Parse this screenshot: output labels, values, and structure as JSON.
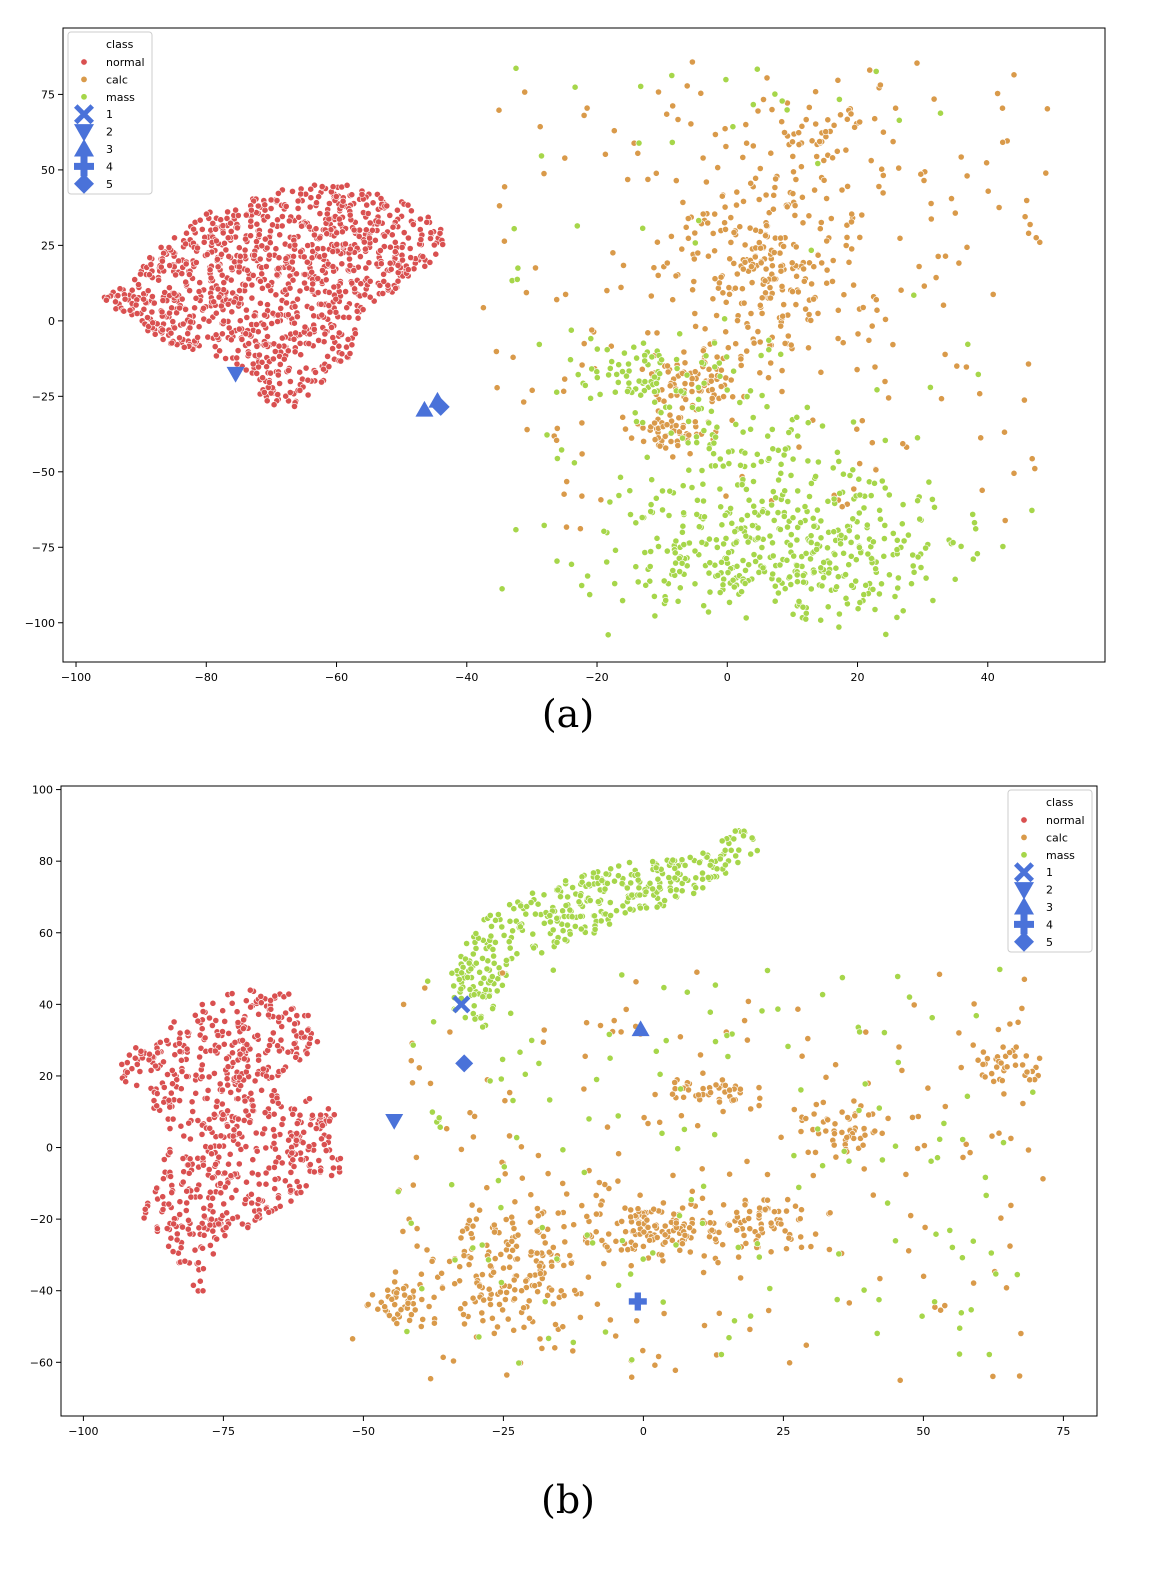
{
  "figure": {
    "panel_labels": [
      "(a)",
      "(b)"
    ],
    "legend_title": "class",
    "class_names": [
      "normal",
      "calc",
      "mass"
    ],
    "query_marker_names": [
      "1",
      "2",
      "3",
      "4",
      "5"
    ],
    "colors": {
      "normal": "#d95050",
      "calc": "#d99a4a",
      "mass": "#a6d64a",
      "query": "#4a72d9"
    },
    "icons": {
      "1": "x-marker-icon",
      "2": "triangle-down-icon",
      "3": "triangle-up-icon",
      "4": "plus-marker-icon",
      "5": "diamond-icon"
    }
  },
  "chart_data": [
    {
      "type": "scatter",
      "title": "",
      "xlabel": "",
      "ylabel": "",
      "xlim": [
        -102,
        58
      ],
      "ylim": [
        -113,
        97
      ],
      "xticks": [
        -100,
        -80,
        -60,
        -40,
        -20,
        0,
        20,
        40
      ],
      "yticks": [
        -100,
        -75,
        -50,
        -25,
        0,
        25,
        50,
        75
      ],
      "legend": {
        "title": "class",
        "location": "top-left",
        "entries": [
          "normal",
          "calc",
          "mass",
          "1",
          "2",
          "3",
          "4",
          "5"
        ]
      },
      "clusters": [
        {
          "class": "normal",
          "n": 1100,
          "mode": "poly",
          "poly": [
            [
              -96,
              8
            ],
            [
              -92,
              13
            ],
            [
              -87,
              25
            ],
            [
              -82,
              34
            ],
            [
              -75,
              40
            ],
            [
              -68,
              45
            ],
            [
              -58,
              46
            ],
            [
              -48,
              38
            ],
            [
              -44,
              32
            ],
            [
              -43,
              23
            ],
            [
              -48,
              15
            ],
            [
              -56,
              2
            ],
            [
              -58,
              -12
            ],
            [
              -63,
              -22
            ],
            [
              -67,
              -30
            ],
            [
              -71,
              -29
            ],
            [
              -73,
              -18
            ],
            [
              -78,
              -12
            ],
            [
              -88,
              -6
            ],
            [
              -93,
              2
            ]
          ]
        },
        {
          "class": "calc",
          "n": 250,
          "mode": "gauss",
          "cx": 6,
          "cy": 18,
          "sx": 8,
          "sy": 17
        },
        {
          "class": "calc",
          "n": 80,
          "mode": "gauss",
          "cx": -5,
          "cy": -18,
          "sx": 4,
          "sy": 6
        },
        {
          "class": "calc",
          "n": 50,
          "mode": "gauss",
          "cx": -8,
          "cy": -37,
          "sx": 3,
          "sy": 3
        },
        {
          "class": "calc",
          "n": 40,
          "mode": "gauss",
          "cx": 13,
          "cy": 63,
          "sx": 6,
          "sy": 6
        },
        {
          "class": "calc",
          "n": 200,
          "mode": "box",
          "x0": -38,
          "x1": 50,
          "y0": -70,
          "y1": 88
        },
        {
          "class": "mass",
          "n": 330,
          "mode": "gauss",
          "cx": 6,
          "cy": -77,
          "sx": 13,
          "sy": 10
        },
        {
          "class": "mass",
          "n": 110,
          "mode": "gauss",
          "cx": 2,
          "cy": -45,
          "sx": 8,
          "sy": 14
        },
        {
          "class": "mass",
          "n": 80,
          "mode": "gauss",
          "cx": -12,
          "cy": -18,
          "sx": 6,
          "sy": 6
        },
        {
          "class": "mass",
          "n": 60,
          "mode": "gauss",
          "cx": 20,
          "cy": -72,
          "sx": 6,
          "sy": 12
        },
        {
          "class": "mass",
          "n": 70,
          "mode": "box",
          "x0": -35,
          "x1": 40,
          "y0": -100,
          "y1": 85
        }
      ],
      "query_points": [
        {
          "label": "2",
          "marker": "triangle-down",
          "x": -75.5,
          "y": -17.5
        },
        {
          "label": "3",
          "marker": "triangle-up",
          "x": -46.5,
          "y": -29.5
        },
        {
          "label": "3",
          "marker": "triangle-up",
          "x": -44.5,
          "y": -26.5
        },
        {
          "label": "5",
          "marker": "diamond",
          "x": -44,
          "y": -28.5
        }
      ]
    },
    {
      "type": "scatter",
      "title": "",
      "xlabel": "",
      "ylabel": "",
      "xlim": [
        -104,
        81
      ],
      "ylim": [
        -75,
        101
      ],
      "xticks": [
        -100,
        -75,
        -50,
        -25,
        0,
        25,
        50,
        75
      ],
      "yticks": [
        -60,
        -40,
        -20,
        0,
        20,
        40,
        60,
        80,
        100
      ],
      "legend": {
        "title": "class",
        "location": "top-right",
        "entries": [
          "normal",
          "calc",
          "mass",
          "1",
          "2",
          "3",
          "4",
          "5"
        ]
      },
      "clusters": [
        {
          "class": "normal",
          "n": 700,
          "mode": "poly",
          "poly": [
            [
              -95,
              22
            ],
            [
              -92,
              27
            ],
            [
              -86,
              33
            ],
            [
              -79,
              40
            ],
            [
              -72,
              44
            ],
            [
              -64,
              44
            ],
            [
              -59,
              36
            ],
            [
              -58,
              28
            ],
            [
              -63,
              22
            ],
            [
              -66,
              18
            ],
            [
              -58,
              13
            ],
            [
              -53,
              8
            ],
            [
              -54,
              -7
            ],
            [
              -62,
              -14
            ],
            [
              -69,
              -22
            ],
            [
              -76,
              -26
            ],
            [
              -79,
              -42
            ],
            [
              -83,
              -32
            ],
            [
              -90,
              -18
            ],
            [
              -87,
              -8
            ],
            [
              -84,
              3
            ],
            [
              -90,
              14
            ]
          ]
        },
        {
          "class": "mass",
          "n": 380,
          "mode": "poly",
          "poly": [
            [
              -34,
              50
            ],
            [
              -30,
              62
            ],
            [
              -23,
              70
            ],
            [
              -12,
              76
            ],
            [
              -2,
              80
            ],
            [
              8,
              81
            ],
            [
              18,
              91
            ],
            [
              22,
              85
            ],
            [
              16,
              77
            ],
            [
              8,
              70
            ],
            [
              -2,
              64
            ],
            [
              -12,
              58
            ],
            [
              -22,
              52
            ],
            [
              -26,
              43
            ],
            [
              -28,
              33
            ],
            [
              -34,
              36
            ]
          ]
        },
        {
          "class": "calc",
          "n": 120,
          "mode": "gauss",
          "cx": 2,
          "cy": -23,
          "sx": 6,
          "sy": 4
        },
        {
          "class": "calc",
          "n": 200,
          "mode": "gauss",
          "cx": -23,
          "cy": -32,
          "sx": 9,
          "sy": 10
        },
        {
          "class": "calc",
          "n": 70,
          "mode": "gauss",
          "cx": 20,
          "cy": -22,
          "sx": 5,
          "sy": 5
        },
        {
          "class": "calc",
          "n": 50,
          "mode": "gauss",
          "cx": 36,
          "cy": 6,
          "sx": 4,
          "sy": 5
        },
        {
          "class": "calc",
          "n": 40,
          "mode": "gauss",
          "cx": 65,
          "cy": 24,
          "sx": 3,
          "sy": 4
        },
        {
          "class": "calc",
          "n": 40,
          "mode": "gauss",
          "cx": 12,
          "cy": 16,
          "sx": 5,
          "sy": 2
        },
        {
          "class": "calc",
          "n": 40,
          "mode": "gauss",
          "cx": -44,
          "cy": -43,
          "sx": 3,
          "sy": 3
        },
        {
          "class": "calc",
          "n": 180,
          "mode": "box",
          "x0": -45,
          "x1": 72,
          "y0": -66,
          "y1": 50
        },
        {
          "class": "mass",
          "n": 150,
          "mode": "box",
          "x0": -45,
          "x1": 70,
          "y0": -62,
          "y1": 50
        }
      ],
      "query_points": [
        {
          "label": "1",
          "marker": "x",
          "x": -32.5,
          "y": 40
        },
        {
          "label": "3",
          "marker": "triangle-up",
          "x": -0.5,
          "y": 33
        },
        {
          "label": "5",
          "marker": "diamond",
          "x": -32,
          "y": 23.5
        },
        {
          "label": "2",
          "marker": "triangle-down",
          "x": -44.5,
          "y": 7.5
        },
        {
          "label": "4",
          "marker": "plus",
          "x": -1,
          "y": -43
        }
      ]
    }
  ]
}
